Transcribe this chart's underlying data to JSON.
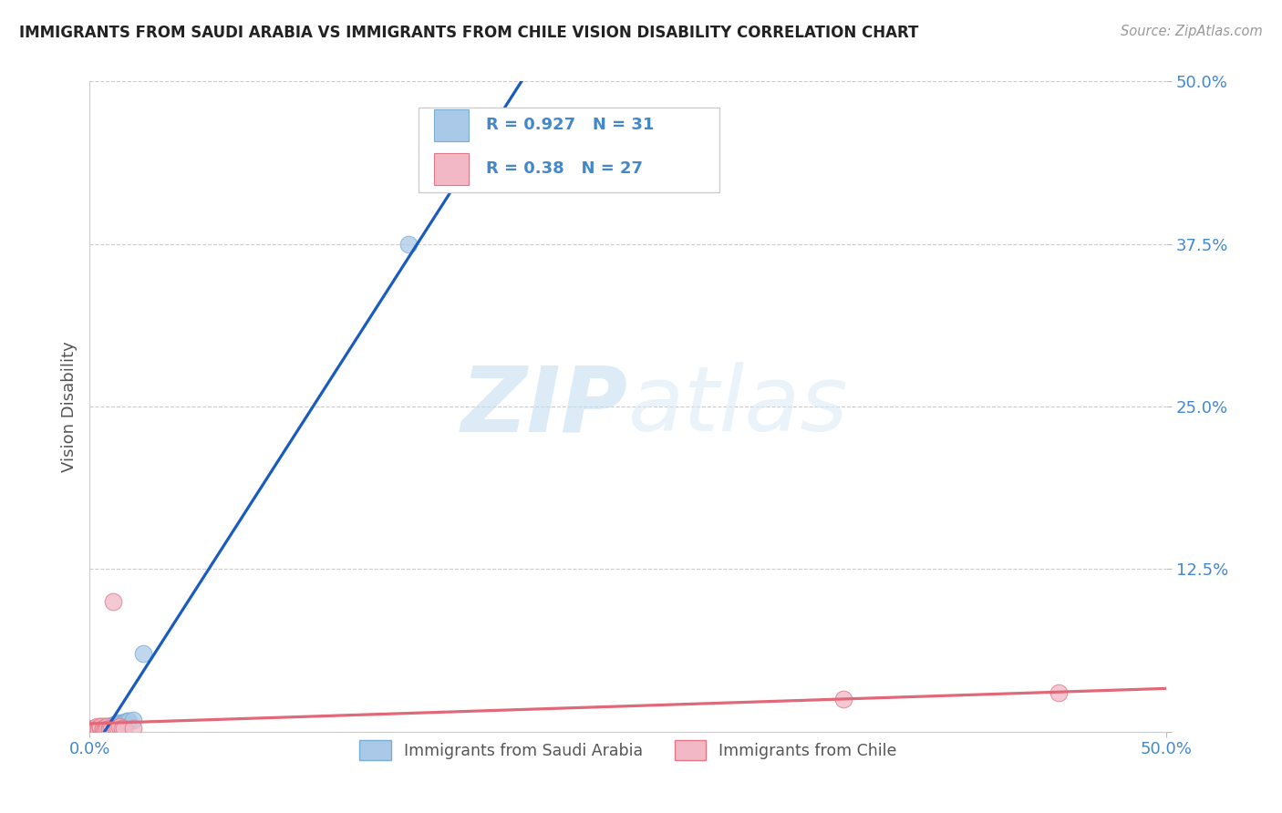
{
  "title": "IMMIGRANTS FROM SAUDI ARABIA VS IMMIGRANTS FROM CHILE VISION DISABILITY CORRELATION CHART",
  "source": "Source: ZipAtlas.com",
  "ylabel": "Vision Disability",
  "xlim": [
    0.0,
    0.5
  ],
  "ylim": [
    0.0,
    0.5
  ],
  "xticks": [
    0.0,
    0.5
  ],
  "yticks": [
    0.0,
    0.125,
    0.25,
    0.375,
    0.5
  ],
  "xticklabels": [
    "0.0%",
    "50.0%"
  ],
  "yticklabels": [
    "",
    "12.5%",
    "25.0%",
    "37.5%",
    "50.0%"
  ],
  "saudi_color": "#aac9e8",
  "saudi_edge": "#7aadd4",
  "chile_color": "#f2b8c6",
  "chile_edge": "#e07888",
  "line_saudi_color": "#1a5bbf",
  "line_chile_color": "#e06878",
  "R_saudi": 0.927,
  "N_saudi": 31,
  "R_chile": 0.38,
  "N_chile": 27,
  "legend_label_saudi": "Immigrants from Saudi Arabia",
  "legend_label_chile": "Immigrants from Chile",
  "watermark_zip": "ZIP",
  "watermark_atlas": "atlas",
  "saudi_points": [
    [
      0.001,
      0.002
    ],
    [
      0.002,
      0.003
    ],
    [
      0.002,
      0.001
    ],
    [
      0.003,
      0.003
    ],
    [
      0.003,
      0.002
    ],
    [
      0.004,
      0.003
    ],
    [
      0.004,
      0.002
    ],
    [
      0.005,
      0.003
    ],
    [
      0.005,
      0.004
    ],
    [
      0.006,
      0.003
    ],
    [
      0.006,
      0.004
    ],
    [
      0.007,
      0.003
    ],
    [
      0.007,
      0.004
    ],
    [
      0.008,
      0.004
    ],
    [
      0.008,
      0.003
    ],
    [
      0.009,
      0.004
    ],
    [
      0.009,
      0.003
    ],
    [
      0.01,
      0.005
    ],
    [
      0.01,
      0.004
    ],
    [
      0.011,
      0.005
    ],
    [
      0.012,
      0.005
    ],
    [
      0.012,
      0.006
    ],
    [
      0.013,
      0.006
    ],
    [
      0.014,
      0.007
    ],
    [
      0.015,
      0.007
    ],
    [
      0.016,
      0.007
    ],
    [
      0.017,
      0.008
    ],
    [
      0.018,
      0.008
    ],
    [
      0.02,
      0.009
    ],
    [
      0.025,
      0.06
    ],
    [
      0.148,
      0.375
    ]
  ],
  "chile_points": [
    [
      0.001,
      0.002
    ],
    [
      0.002,
      0.003
    ],
    [
      0.002,
      0.001
    ],
    [
      0.003,
      0.004
    ],
    [
      0.003,
      0.002
    ],
    [
      0.004,
      0.003
    ],
    [
      0.004,
      0.001
    ],
    [
      0.005,
      0.003
    ],
    [
      0.005,
      0.004
    ],
    [
      0.006,
      0.002
    ],
    [
      0.006,
      0.003
    ],
    [
      0.007,
      0.003
    ],
    [
      0.007,
      0.002
    ],
    [
      0.008,
      0.004
    ],
    [
      0.008,
      0.002
    ],
    [
      0.009,
      0.003
    ],
    [
      0.009,
      0.002
    ],
    [
      0.01,
      0.003
    ],
    [
      0.011,
      0.1
    ],
    [
      0.012,
      0.003
    ],
    [
      0.013,
      0.003
    ],
    [
      0.014,
      0.004
    ],
    [
      0.015,
      0.003
    ],
    [
      0.016,
      0.003
    ],
    [
      0.02,
      0.003
    ],
    [
      0.35,
      0.025
    ],
    [
      0.45,
      0.03
    ]
  ]
}
